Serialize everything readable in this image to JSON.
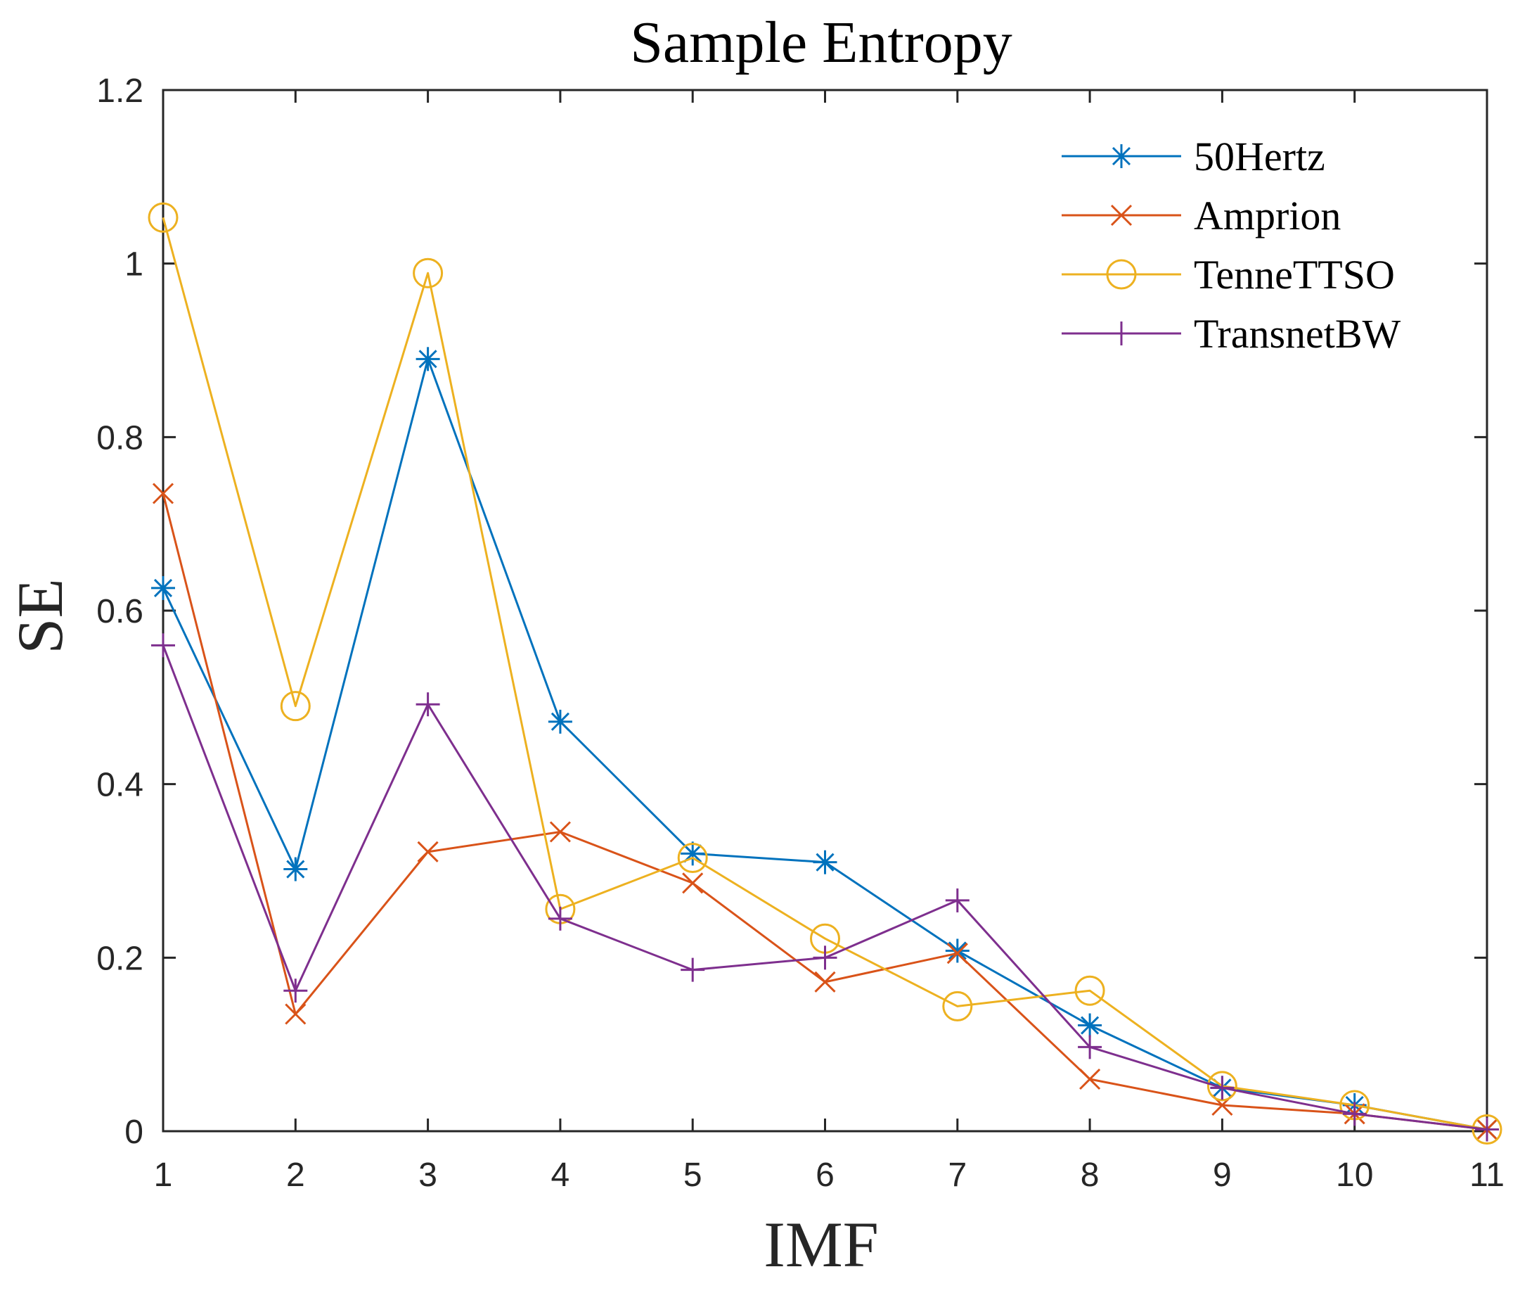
{
  "chart_data": {
    "type": "line",
    "title": "Sample Entropy",
    "xlabel": "IMF",
    "ylabel": "SE",
    "x": [
      1,
      2,
      3,
      4,
      5,
      6,
      7,
      8,
      9,
      10,
      11
    ],
    "xlim": [
      1,
      11
    ],
    "ylim": [
      0,
      1.2
    ],
    "xticks": [
      "1",
      "2",
      "3",
      "4",
      "5",
      "6",
      "7",
      "8",
      "9",
      "10",
      "11"
    ],
    "yticks": [
      "0",
      "0.2",
      "0.4",
      "0.6",
      "0.8",
      "1",
      "1.2"
    ],
    "ytick_values": [
      0,
      0.2,
      0.4,
      0.6,
      0.8,
      1.0,
      1.2
    ],
    "grid": false,
    "legend_position": "top-right",
    "series": [
      {
        "name": "50Hertz",
        "color": "#0072BD",
        "marker": "asterisk",
        "values": [
          0.626,
          0.302,
          0.89,
          0.472,
          0.32,
          0.31,
          0.208,
          0.122,
          0.05,
          0.03,
          0.002
        ]
      },
      {
        "name": "Amprion",
        "color": "#D95319",
        "marker": "x",
        "values": [
          0.735,
          0.135,
          0.322,
          0.345,
          0.286,
          0.172,
          0.205,
          0.06,
          0.03,
          0.02,
          0.002
        ]
      },
      {
        "name": "TenneTTSO",
        "color": "#EDB120",
        "marker": "circle",
        "values": [
          1.053,
          0.49,
          0.989,
          0.256,
          0.315,
          0.222,
          0.144,
          0.162,
          0.052,
          0.03,
          0.002
        ]
      },
      {
        "name": "TransnetBW",
        "color": "#7E2F8E",
        "marker": "plus",
        "values": [
          0.56,
          0.162,
          0.492,
          0.245,
          0.186,
          0.2,
          0.266,
          0.097,
          0.05,
          0.02,
          0.002
        ]
      }
    ]
  }
}
